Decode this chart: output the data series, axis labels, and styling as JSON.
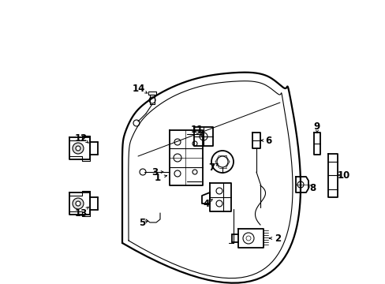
{
  "background_color": "#ffffff",
  "line_color": "#000000",
  "lw": 1.3,
  "tlw": 0.8,
  "fig_width": 4.89,
  "fig_height": 3.6,
  "dpi": 100
}
